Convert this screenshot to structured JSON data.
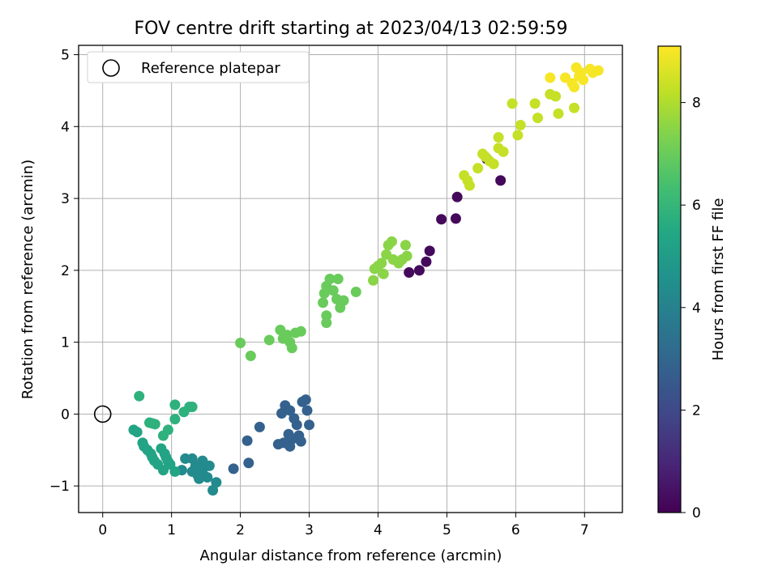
{
  "chart_data": {
    "type": "scatter",
    "title": "FOV centre drift starting at 2023/04/13 02:59:59",
    "xlabel": "Angular distance from reference (arcmin)",
    "ylabel": "Rotation from reference (arcmin)",
    "xlim": [
      -0.35,
      7.55
    ],
    "ylim": [
      -1.37,
      5.13
    ],
    "xticks": [
      0,
      1,
      2,
      3,
      4,
      5,
      6,
      7
    ],
    "yticks": [
      -1,
      0,
      1,
      2,
      3,
      4,
      5
    ],
    "grid": true,
    "legend": {
      "placement": "top-left",
      "entries": [
        {
          "label": "Reference platepar",
          "marker": "open-circle"
        }
      ]
    },
    "reference_point": {
      "x": 0,
      "y": 0
    },
    "colorbar": {
      "label": "Hours from first FF file",
      "range": [
        0,
        9.1
      ],
      "ticks": [
        0,
        2,
        4,
        6,
        8
      ],
      "colormap": "viridis"
    },
    "series": [
      {
        "hours": 0.2,
        "points": [
          [
            4.45,
            1.97
          ],
          [
            4.6,
            2.0
          ],
          [
            4.7,
            2.12
          ],
          [
            4.75,
            2.27
          ],
          [
            4.92,
            2.71
          ],
          [
            5.13,
            2.72
          ],
          [
            5.15,
            3.02
          ],
          [
            5.58,
            3.55
          ],
          [
            5.78,
            3.25
          ]
        ]
      },
      {
        "hours": 2.8,
        "points": [
          [
            2.6,
            0.01
          ],
          [
            2.65,
            0.12
          ],
          [
            2.72,
            0.05
          ],
          [
            2.78,
            -0.06
          ],
          [
            2.82,
            -0.15
          ],
          [
            2.85,
            -0.3
          ],
          [
            2.9,
            0.17
          ],
          [
            2.95,
            0.2
          ],
          [
            2.97,
            0.05
          ],
          [
            3.0,
            -0.15
          ],
          [
            2.7,
            -0.28
          ],
          [
            2.75,
            -0.35
          ],
          [
            2.88,
            -0.38
          ],
          [
            2.72,
            -0.45
          ],
          [
            2.63,
            -0.4
          ],
          [
            2.55,
            -0.42
          ],
          [
            2.28,
            -0.18
          ],
          [
            2.1,
            -0.37
          ],
          [
            2.12,
            -0.68
          ],
          [
            1.9,
            -0.76
          ]
        ]
      },
      {
        "hours": 4.3,
        "points": [
          [
            1.15,
            -0.78
          ],
          [
            1.3,
            -0.8
          ],
          [
            1.38,
            -0.85
          ],
          [
            1.45,
            -0.78
          ],
          [
            1.52,
            -0.88
          ],
          [
            1.6,
            -1.06
          ],
          [
            1.65,
            -0.95
          ],
          [
            1.3,
            -0.62
          ],
          [
            1.45,
            -0.65
          ],
          [
            1.55,
            -0.72
          ],
          [
            1.2,
            -0.62
          ],
          [
            1.35,
            -0.72
          ],
          [
            1.4,
            -0.9
          ]
        ]
      },
      {
        "hours": 5.3,
        "points": [
          [
            0.45,
            -0.22
          ],
          [
            0.5,
            -0.25
          ],
          [
            0.58,
            -0.4
          ],
          [
            0.6,
            -0.45
          ],
          [
            0.65,
            -0.5
          ],
          [
            0.7,
            -0.55
          ],
          [
            0.72,
            -0.6
          ],
          [
            0.75,
            -0.65
          ],
          [
            0.8,
            -0.7
          ],
          [
            0.85,
            -0.48
          ],
          [
            0.9,
            -0.55
          ],
          [
            0.92,
            -0.6
          ],
          [
            0.95,
            -0.66
          ],
          [
            0.88,
            -0.78
          ],
          [
            0.98,
            -0.7
          ],
          [
            1.05,
            -0.8
          ]
        ]
      },
      {
        "hours": 5.8,
        "points": [
          [
            0.53,
            0.25
          ],
          [
            0.68,
            -0.12
          ],
          [
            0.72,
            -0.13
          ],
          [
            0.76,
            -0.14
          ],
          [
            0.88,
            -0.3
          ],
          [
            0.95,
            -0.22
          ],
          [
            1.05,
            -0.07
          ],
          [
            1.05,
            0.13
          ],
          [
            1.18,
            0.03
          ],
          [
            1.26,
            0.1
          ],
          [
            1.3,
            0.1
          ]
        ]
      },
      {
        "hours": 7.0,
        "points": [
          [
            2.0,
            0.99
          ],
          [
            2.15,
            0.81
          ],
          [
            2.42,
            1.03
          ],
          [
            2.58,
            1.17
          ],
          [
            2.62,
            1.05
          ],
          [
            2.68,
            1.1
          ],
          [
            2.72,
            1.0
          ],
          [
            2.75,
            0.92
          ],
          [
            2.8,
            1.13
          ],
          [
            2.88,
            1.15
          ],
          [
            3.2,
            1.55
          ],
          [
            3.22,
            1.68
          ],
          [
            3.25,
            1.78
          ],
          [
            3.3,
            1.88
          ],
          [
            3.35,
            1.72
          ],
          [
            3.4,
            1.6
          ],
          [
            3.42,
            1.88
          ],
          [
            3.45,
            1.48
          ],
          [
            3.5,
            1.58
          ],
          [
            3.68,
            1.7
          ],
          [
            3.25,
            1.27
          ],
          [
            3.25,
            1.37
          ]
        ]
      },
      {
        "hours": 7.5,
        "points": [
          [
            3.93,
            1.86
          ],
          [
            3.95,
            2.02
          ],
          [
            4.0,
            2.06
          ],
          [
            4.05,
            2.1
          ],
          [
            4.08,
            1.95
          ],
          [
            4.12,
            2.22
          ],
          [
            4.15,
            2.35
          ],
          [
            4.2,
            2.4
          ],
          [
            4.22,
            2.15
          ],
          [
            4.3,
            2.1
          ],
          [
            4.35,
            2.15
          ],
          [
            4.42,
            2.2
          ],
          [
            4.4,
            2.35
          ]
        ]
      },
      {
        "hours": 8.3,
        "points": [
          [
            5.25,
            3.32
          ],
          [
            5.3,
            3.25
          ],
          [
            5.33,
            3.18
          ],
          [
            5.45,
            3.42
          ],
          [
            5.52,
            3.62
          ],
          [
            5.56,
            3.58
          ],
          [
            5.62,
            3.52
          ],
          [
            5.68,
            3.48
          ],
          [
            5.75,
            3.7
          ],
          [
            5.75,
            3.85
          ],
          [
            5.82,
            3.65
          ],
          [
            5.95,
            4.32
          ],
          [
            6.03,
            3.88
          ],
          [
            6.07,
            4.02
          ],
          [
            6.28,
            4.32
          ],
          [
            6.32,
            4.12
          ],
          [
            6.5,
            4.45
          ],
          [
            6.58,
            4.42
          ],
          [
            6.62,
            4.18
          ],
          [
            6.85,
            4.26
          ]
        ]
      },
      {
        "hours": 9.0,
        "points": [
          [
            6.5,
            4.68
          ],
          [
            6.72,
            4.68
          ],
          [
            6.82,
            4.6
          ],
          [
            6.85,
            4.55
          ],
          [
            6.88,
            4.82
          ],
          [
            6.92,
            4.7
          ],
          [
            6.95,
            4.75
          ],
          [
            6.98,
            4.65
          ],
          [
            7.08,
            4.8
          ],
          [
            7.12,
            4.75
          ],
          [
            7.2,
            4.78
          ]
        ]
      }
    ]
  }
}
